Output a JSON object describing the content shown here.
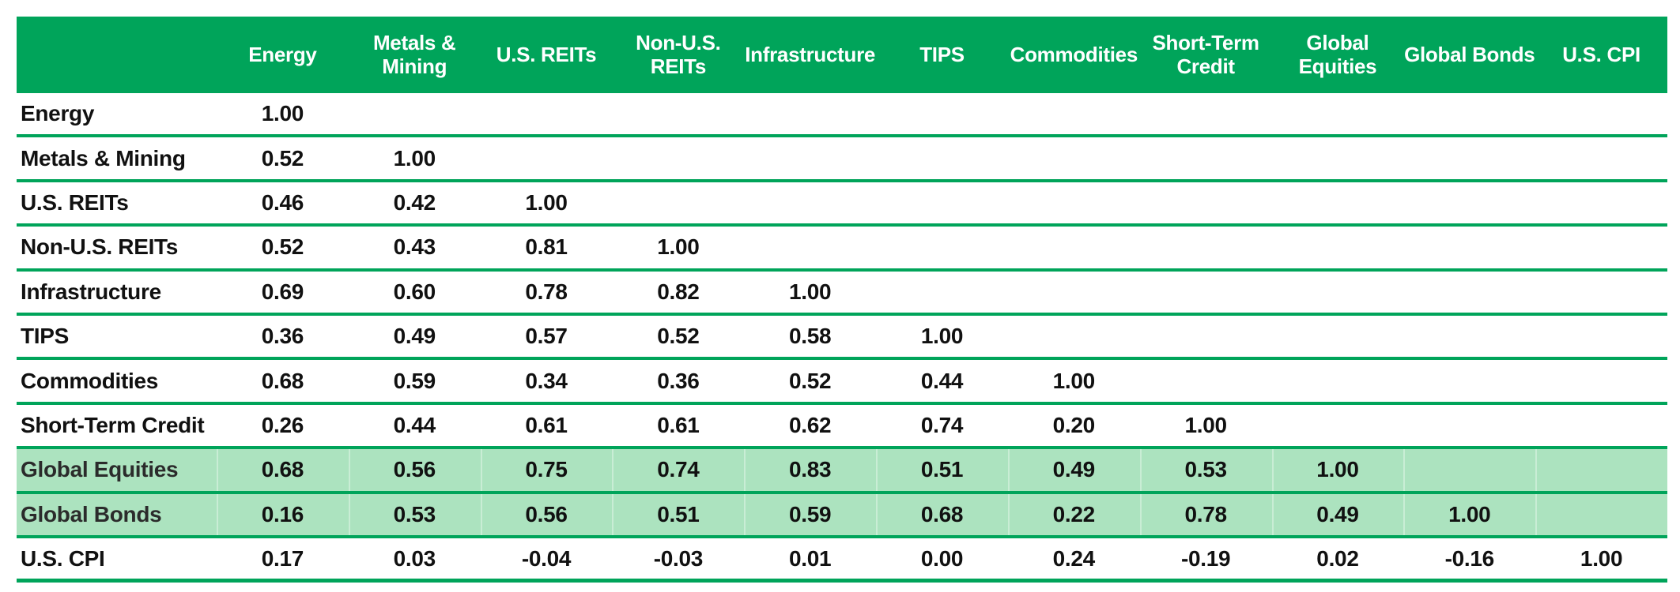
{
  "colors": {
    "header_bg": "#00A45A",
    "header_text": "#FFFFFF",
    "separator_line": "#00A45A",
    "highlight_bg": "#ACE3BF",
    "body_text": "#111111",
    "page_bg": "#FFFFFF"
  },
  "table": {
    "corner_label": "",
    "columns": [
      "Energy",
      "Metals &\nMining",
      "U.S. REITs",
      "Non-U.S.\nREITs",
      "Infrastructure",
      "TIPS",
      "Commodities",
      "Short-Term\nCredit",
      "Global\nEquities",
      "Global Bonds",
      "U.S. CPI"
    ],
    "rows": [
      {
        "label": "Energy",
        "cells": [
          "1.00"
        ],
        "highlighted": false
      },
      {
        "label": "Metals & Mining",
        "cells": [
          "0.52",
          "1.00"
        ],
        "highlighted": false
      },
      {
        "label": "U.S. REITs",
        "cells": [
          "0.46",
          "0.42",
          "1.00"
        ],
        "highlighted": false
      },
      {
        "label": "Non-U.S. REITs",
        "cells": [
          "0.52",
          "0.43",
          "0.81",
          "1.00"
        ],
        "highlighted": false
      },
      {
        "label": "Infrastructure",
        "cells": [
          "0.69",
          "0.60",
          "0.78",
          "0.82",
          "1.00"
        ],
        "highlighted": false
      },
      {
        "label": "TIPS",
        "cells": [
          "0.36",
          "0.49",
          "0.57",
          "0.52",
          "0.58",
          "1.00"
        ],
        "highlighted": false
      },
      {
        "label": "Commodities",
        "cells": [
          "0.68",
          "0.59",
          "0.34",
          "0.36",
          "0.52",
          "0.44",
          "1.00"
        ],
        "highlighted": false
      },
      {
        "label": "Short-Term Credit",
        "cells": [
          "0.26",
          "0.44",
          "0.61",
          "0.61",
          "0.62",
          "0.74",
          "0.20",
          "1.00"
        ],
        "highlighted": false
      },
      {
        "label": "Global Equities",
        "cells": [
          "0.68",
          "0.56",
          "0.75",
          "0.74",
          "0.83",
          "0.51",
          "0.49",
          "0.53",
          "1.00"
        ],
        "highlighted": true
      },
      {
        "label": "Global Bonds",
        "cells": [
          "0.16",
          "0.53",
          "0.56",
          "0.51",
          "0.59",
          "0.68",
          "0.22",
          "0.78",
          "0.49",
          "1.00"
        ],
        "highlighted": true
      },
      {
        "label": "U.S. CPI",
        "cells": [
          "0.17",
          "0.03",
          "-0.04",
          "-0.03",
          "0.01",
          "0.00",
          "0.24",
          "-0.19",
          "0.02",
          "-0.16",
          "1.00"
        ],
        "highlighted": false
      }
    ]
  },
  "chart_data": {
    "type": "table",
    "subtype": "correlation-matrix",
    "columns": [
      "Energy",
      "Metals & Mining",
      "U.S. REITs",
      "Non-U.S. REITs",
      "Infrastructure",
      "TIPS",
      "Commodities",
      "Short-Term Credit",
      "Global Equities",
      "Global Bonds",
      "U.S. CPI"
    ],
    "row_labels": [
      "Energy",
      "Metals & Mining",
      "U.S. REITs",
      "Non-U.S. REITs",
      "Infrastructure",
      "TIPS",
      "Commodities",
      "Short-Term Credit",
      "Global Equities",
      "Global Bonds",
      "U.S. CPI"
    ],
    "matrix": [
      [
        1.0,
        null,
        null,
        null,
        null,
        null,
        null,
        null,
        null,
        null,
        null
      ],
      [
        0.52,
        1.0,
        null,
        null,
        null,
        null,
        null,
        null,
        null,
        null,
        null
      ],
      [
        0.46,
        0.42,
        1.0,
        null,
        null,
        null,
        null,
        null,
        null,
        null,
        null
      ],
      [
        0.52,
        0.43,
        0.81,
        1.0,
        null,
        null,
        null,
        null,
        null,
        null,
        null
      ],
      [
        0.69,
        0.6,
        0.78,
        0.82,
        1.0,
        null,
        null,
        null,
        null,
        null,
        null
      ],
      [
        0.36,
        0.49,
        0.57,
        0.52,
        0.58,
        1.0,
        null,
        null,
        null,
        null,
        null
      ],
      [
        0.68,
        0.59,
        0.34,
        0.36,
        0.52,
        0.44,
        1.0,
        null,
        null,
        null,
        null
      ],
      [
        0.26,
        0.44,
        0.61,
        0.61,
        0.62,
        0.74,
        0.2,
        1.0,
        null,
        null,
        null
      ],
      [
        0.68,
        0.56,
        0.75,
        0.74,
        0.83,
        0.51,
        0.49,
        0.53,
        1.0,
        null,
        null
      ],
      [
        0.16,
        0.53,
        0.56,
        0.51,
        0.59,
        0.68,
        0.22,
        0.78,
        0.49,
        1.0,
        null
      ],
      [
        0.17,
        0.03,
        -0.04,
        -0.03,
        0.01,
        0.0,
        0.24,
        -0.19,
        0.02,
        -0.16,
        1.0
      ]
    ],
    "highlighted_rows": [
      "Global Equities",
      "Global Bonds"
    ],
    "layout": "lower-triangular, blank upper triangle, green header band, green row separator rules, light-green highlight on Global Equities and Global Bonds rows"
  }
}
